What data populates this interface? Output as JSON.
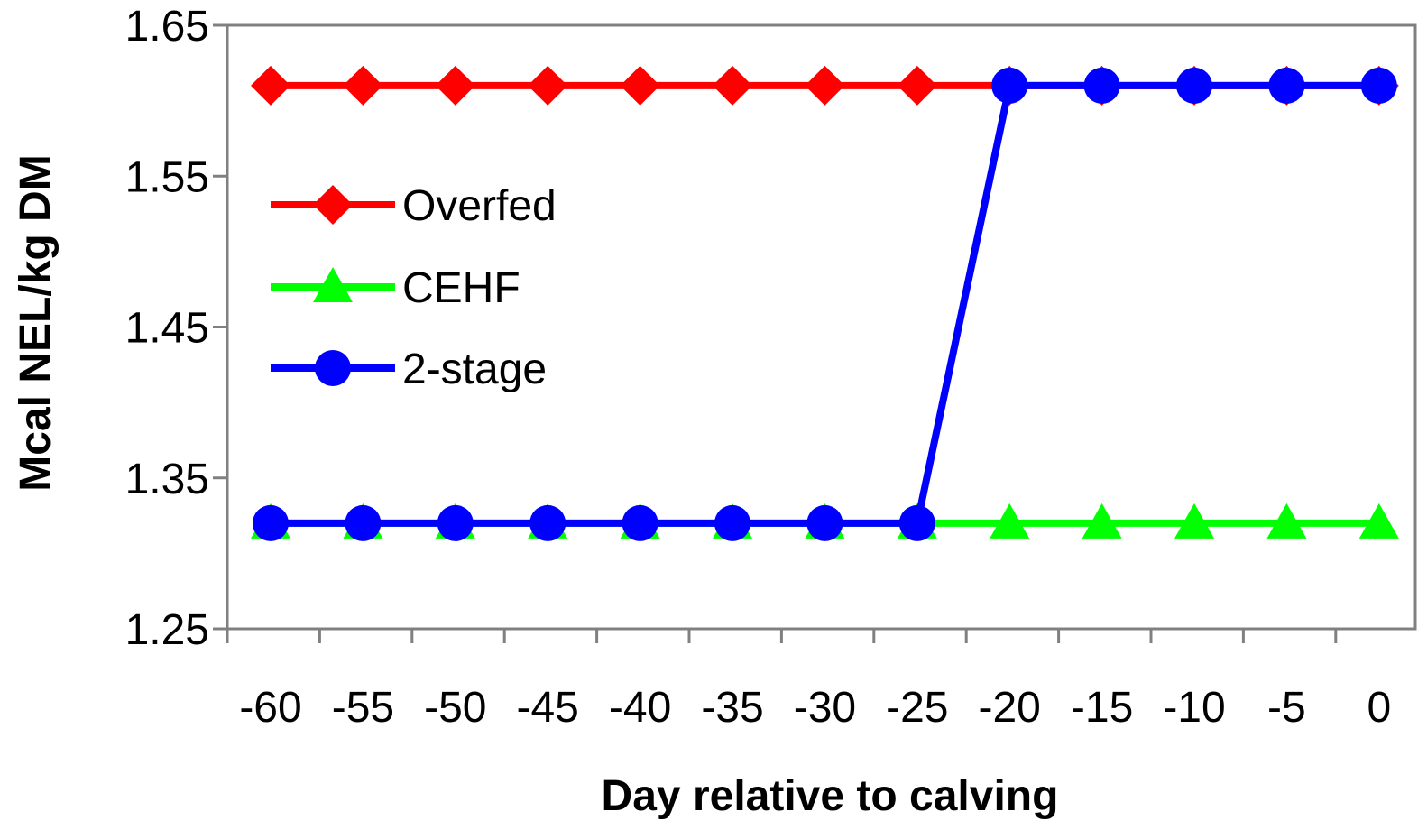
{
  "chart_data": {
    "type": "line",
    "title": "",
    "xlabel": "Day relative to calving",
    "ylabel": "Mcal NEL/kg DM",
    "x": [
      -60,
      -55,
      -50,
      -45,
      -40,
      -35,
      -30,
      -25,
      -20,
      -15,
      -10,
      -5,
      0
    ],
    "x_tick_labels": [
      "-60",
      "-55",
      "-50",
      "-45",
      "-40",
      "-35",
      "-30",
      "-25",
      "-20",
      "-15",
      "-10",
      "-5",
      "0"
    ],
    "y_ticks": [
      1.25,
      1.35,
      1.45,
      1.55,
      1.65
    ],
    "y_tick_labels": [
      "1.25",
      "1.35",
      "1.45",
      "1.55",
      "1.65"
    ],
    "ylim": [
      1.25,
      1.65
    ],
    "grid": false,
    "legend_position": "left",
    "series": [
      {
        "name": "Overfed",
        "color": "#FF0000",
        "marker": "diamond",
        "values": [
          1.61,
          1.61,
          1.61,
          1.61,
          1.61,
          1.61,
          1.61,
          1.61,
          1.61,
          1.61,
          1.61,
          1.61,
          1.61
        ]
      },
      {
        "name": "CEHF",
        "color": "#00FF00",
        "marker": "triangle",
        "values": [
          1.32,
          1.32,
          1.32,
          1.32,
          1.32,
          1.32,
          1.32,
          1.32,
          1.32,
          1.32,
          1.32,
          1.32,
          1.32
        ]
      },
      {
        "name": "2-stage",
        "color": "#0000FF",
        "marker": "circle",
        "values": [
          1.32,
          1.32,
          1.32,
          1.32,
          1.32,
          1.32,
          1.32,
          1.32,
          1.61,
          1.61,
          1.61,
          1.61,
          1.61
        ]
      }
    ]
  }
}
